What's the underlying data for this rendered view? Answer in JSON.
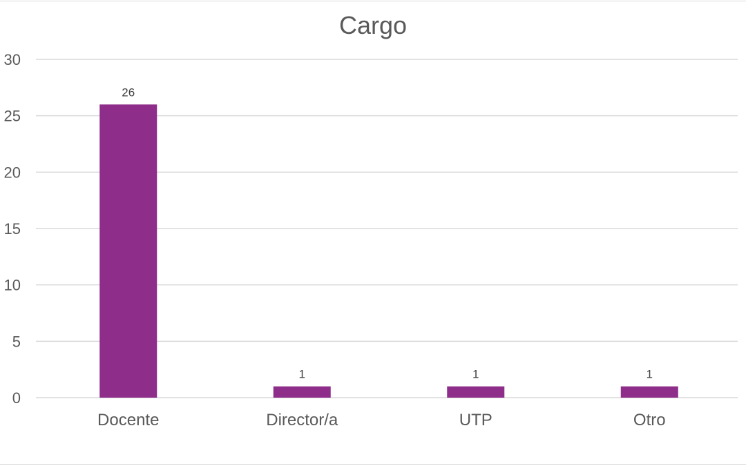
{
  "chart_data": {
    "type": "bar",
    "title": "Cargo",
    "categories": [
      "Docente",
      "Director/a",
      "UTP",
      "Otro"
    ],
    "values": [
      26,
      1,
      1,
      1
    ],
    "data_labels": [
      "26",
      "1",
      "1",
      "1"
    ],
    "y_ticks": [
      "0",
      "5",
      "10",
      "15",
      "20",
      "25",
      "30"
    ],
    "ylim": [
      0,
      30
    ],
    "xlabel": "",
    "ylabel": "",
    "grid": true,
    "legend": "none",
    "colors": {
      "bar": "#8e2d8a",
      "gridline": "#d9d9d9",
      "text": "#595959"
    }
  }
}
